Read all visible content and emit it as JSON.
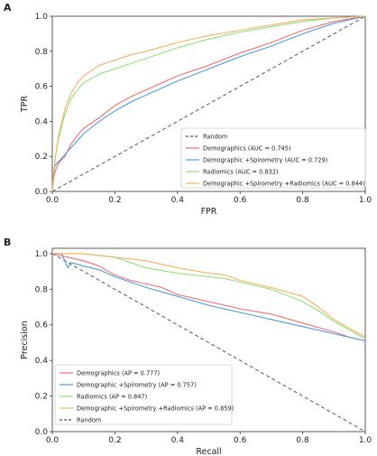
{
  "chart_data": [
    {
      "type": "line",
      "panel_label": "A",
      "xlabel": "FPR",
      "ylabel": "TPR",
      "xlim": [
        0,
        1
      ],
      "ylim": [
        0,
        1
      ],
      "ticks": {
        "x": [
          0,
          0.2,
          0.4,
          0.6,
          0.8,
          1.0
        ],
        "y": [
          0,
          0.2,
          0.4,
          0.6,
          0.8,
          1.0
        ],
        "x_labels": [
          "0.0",
          "0.2",
          "0.4",
          "0.6",
          "0.8",
          "1.0"
        ],
        "y_labels": [
          "0.0",
          "0.2",
          "0.4",
          "0.6",
          "0.8",
          "1.0"
        ]
      },
      "grid": false,
      "legend_position": "lower-right",
      "series": [
        {
          "name": "Random",
          "color": "#555555",
          "dash": true,
          "x": [
            0,
            1
          ],
          "y": [
            0,
            1
          ]
        },
        {
          "name": "Demographics (AUC = 0.745)",
          "color": "#f26d6d",
          "x": [
            0,
            0.005,
            0.01,
            0.02,
            0.04,
            0.06,
            0.08,
            0.1,
            0.15,
            0.2,
            0.25,
            0.3,
            0.4,
            0.5,
            0.6,
            0.7,
            0.8,
            0.9,
            1.0
          ],
          "y": [
            0,
            0.08,
            0.12,
            0.16,
            0.2,
            0.27,
            0.32,
            0.36,
            0.42,
            0.49,
            0.54,
            0.58,
            0.66,
            0.72,
            0.79,
            0.85,
            0.92,
            0.97,
            1.0
          ]
        },
        {
          "name": "Demographic +Spirometry (AUC = 0.729)",
          "color": "#4f9bde",
          "x": [
            0,
            0.005,
            0.01,
            0.02,
            0.04,
            0.06,
            0.08,
            0.1,
            0.15,
            0.2,
            0.25,
            0.3,
            0.4,
            0.5,
            0.6,
            0.7,
            0.8,
            0.9,
            1.0
          ],
          "y": [
            0,
            0.13,
            0.15,
            0.17,
            0.21,
            0.25,
            0.29,
            0.33,
            0.4,
            0.46,
            0.51,
            0.55,
            0.63,
            0.7,
            0.77,
            0.83,
            0.9,
            0.96,
            1.0
          ]
        },
        {
          "name": "Radiomics (AUC = 0.832)",
          "color": "#8fe07a",
          "x": [
            0,
            0.005,
            0.01,
            0.02,
            0.04,
            0.06,
            0.08,
            0.1,
            0.15,
            0.2,
            0.25,
            0.3,
            0.4,
            0.5,
            0.6,
            0.7,
            0.8,
            0.9,
            1.0
          ],
          "y": [
            0,
            0.1,
            0.2,
            0.3,
            0.44,
            0.53,
            0.58,
            0.62,
            0.67,
            0.7,
            0.73,
            0.76,
            0.82,
            0.87,
            0.91,
            0.94,
            0.97,
            0.99,
            1.0
          ]
        },
        {
          "name": "Demographic +Spirometry +Radiomics (AUC = 0.844)",
          "color": "#f5b061",
          "x": [
            0,
            0.005,
            0.01,
            0.02,
            0.04,
            0.06,
            0.08,
            0.1,
            0.15,
            0.2,
            0.25,
            0.3,
            0.4,
            0.5,
            0.6,
            0.7,
            0.8,
            0.9,
            1.0
          ],
          "y": [
            0,
            0.12,
            0.2,
            0.32,
            0.47,
            0.56,
            0.62,
            0.66,
            0.72,
            0.75,
            0.78,
            0.8,
            0.85,
            0.89,
            0.92,
            0.95,
            0.98,
            0.99,
            1.0
          ]
        }
      ]
    },
    {
      "type": "line",
      "panel_label": "B",
      "xlabel": "Recall",
      "ylabel": "Precision",
      "xlim": [
        0,
        1
      ],
      "ylim": [
        0,
        1.03
      ],
      "ticks": {
        "x": [
          0,
          0.2,
          0.4,
          0.6,
          0.8,
          1.0
        ],
        "y": [
          0,
          0.2,
          0.4,
          0.6,
          0.8,
          1.0
        ],
        "x_labels": [
          "0.0",
          "0.2",
          "0.4",
          "0.6",
          "0.8",
          "1.0"
        ],
        "y_labels": [
          "0.0",
          "0.2",
          "0.4",
          "0.6",
          "0.8",
          "1.0"
        ]
      },
      "grid": false,
      "legend_position": "lower-left",
      "series": [
        {
          "name": "Demographics (AP = 0.777)",
          "color": "#f26d6d",
          "x": [
            0,
            0.05,
            0.1,
            0.15,
            0.2,
            0.25,
            0.3,
            0.35,
            0.4,
            0.5,
            0.6,
            0.7,
            0.8,
            0.9,
            0.95,
            1.0
          ],
          "y": [
            1.0,
            0.98,
            0.96,
            0.93,
            0.88,
            0.85,
            0.83,
            0.81,
            0.77,
            0.73,
            0.69,
            0.66,
            0.61,
            0.56,
            0.53,
            0.51
          ]
        },
        {
          "name": "Demographic +Spirometry (AP = 0.757)",
          "color": "#4f9bde",
          "x": [
            0,
            0.03,
            0.05,
            0.06,
            0.08,
            0.1,
            0.15,
            0.2,
            0.3,
            0.4,
            0.5,
            0.6,
            0.7,
            0.8,
            0.9,
            1.0
          ],
          "y": [
            1.0,
            1.0,
            0.92,
            0.95,
            0.94,
            0.93,
            0.91,
            0.87,
            0.81,
            0.76,
            0.71,
            0.67,
            0.63,
            0.59,
            0.55,
            0.51
          ]
        },
        {
          "name": "Radiomics (AP = 0.847)",
          "color": "#8fe07a",
          "x": [
            0,
            0.1,
            0.2,
            0.25,
            0.3,
            0.4,
            0.5,
            0.55,
            0.6,
            0.7,
            0.8,
            0.85,
            0.9,
            0.95,
            1.0
          ],
          "y": [
            1.0,
            1.0,
            0.98,
            0.95,
            0.92,
            0.89,
            0.87,
            0.86,
            0.84,
            0.8,
            0.73,
            0.68,
            0.62,
            0.57,
            0.52
          ]
        },
        {
          "name": "Demographic +Spirometry +Radiomics (AP = 0.859)",
          "color": "#f5b061",
          "x": [
            0,
            0.1,
            0.15,
            0.2,
            0.3,
            0.4,
            0.5,
            0.55,
            0.6,
            0.7,
            0.8,
            0.85,
            0.9,
            0.95,
            1.0
          ],
          "y": [
            1.0,
            1.0,
            0.99,
            0.98,
            0.96,
            0.92,
            0.89,
            0.88,
            0.85,
            0.81,
            0.76,
            0.7,
            0.63,
            0.58,
            0.53
          ]
        },
        {
          "name": "Random",
          "color": "#555555",
          "dash": true,
          "x": [
            0,
            1
          ],
          "y": [
            1.0,
            0
          ]
        }
      ]
    }
  ]
}
